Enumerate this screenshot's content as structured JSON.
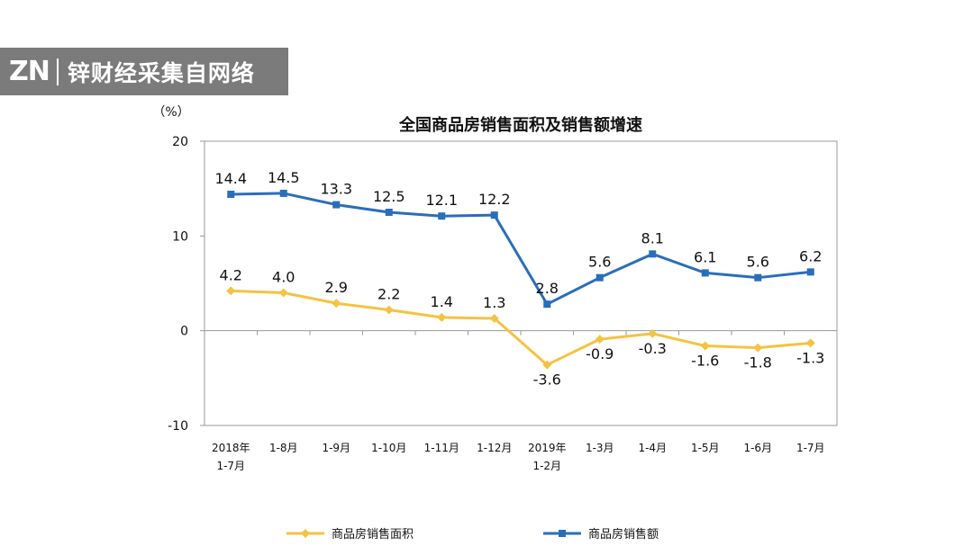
{
  "watermark": {
    "logo": "ZN",
    "text": "锌财经采集自网络"
  },
  "chart_data": {
    "type": "line",
    "title": "全国商品房销售面积及销售额增速",
    "unit": "（%）",
    "ylim": [
      -10,
      20
    ],
    "yticks": [
      "20",
      "10",
      "0",
      "-10"
    ],
    "categories": [
      [
        "2018年",
        "1-7月"
      ],
      [
        "1-8月"
      ],
      [
        "1-9月"
      ],
      [
        "1-10月"
      ],
      [
        "1-11月"
      ],
      [
        "1-12月"
      ],
      [
        "2019年",
        "1-2月"
      ],
      [
        "1-3月"
      ],
      [
        "1-4月"
      ],
      [
        "1-5月"
      ],
      [
        "1-6月"
      ],
      [
        "1-7月"
      ]
    ],
    "grid": false,
    "legend_position": "bottom",
    "series": [
      {
        "name": "商品房销售面积",
        "color": "#f5c342",
        "marker": "diamond",
        "values": [
          4.2,
          4.0,
          2.9,
          2.2,
          1.4,
          1.3,
          -3.6,
          -0.9,
          -0.3,
          -1.6,
          -1.8,
          -1.3
        ],
        "labels": [
          "4.2",
          "4.0",
          "2.9",
          "2.2",
          "1.4",
          "1.3",
          "-3.6",
          "-0.9",
          "-0.3",
          "-1.6",
          "-1.8",
          "-1.3"
        ]
      },
      {
        "name": "商品房销售额",
        "color": "#2a6ebb",
        "marker": "square",
        "values": [
          14.4,
          14.5,
          13.3,
          12.5,
          12.1,
          12.2,
          2.8,
          5.6,
          8.1,
          6.1,
          5.6,
          6.2
        ],
        "labels": [
          "14.4",
          "14.5",
          "13.3",
          "12.5",
          "12.1",
          "12.2",
          "2.8",
          "5.6",
          "8.1",
          "6.1",
          "5.6",
          "6.2"
        ]
      }
    ]
  }
}
